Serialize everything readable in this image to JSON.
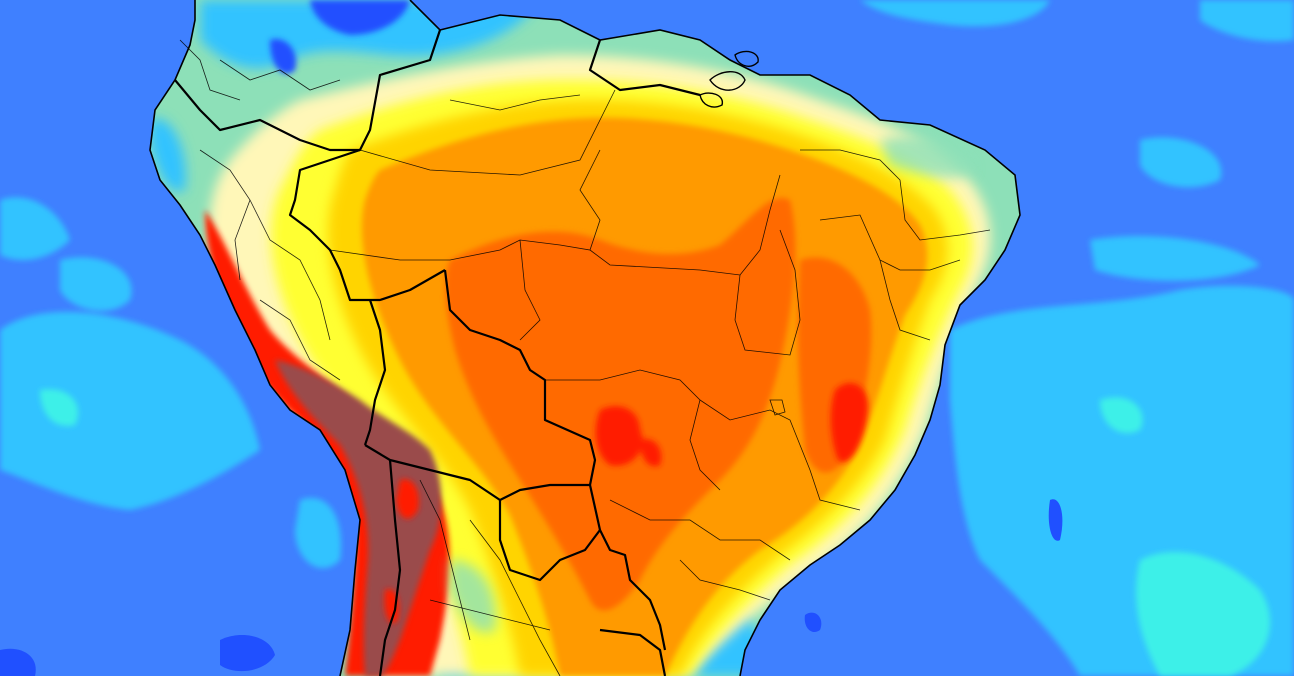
{
  "map": {
    "colors": {
      "ocean": "#3f80ff",
      "ocean_cyan": "#33c3ff",
      "ocean_teal": "#3ef0e8",
      "ocean_dark": "#2050ff",
      "land_green": "#8de0b8",
      "land_pale": "#fff7b8",
      "land_yellow": "#ffff33",
      "land_gold": "#ffd400",
      "land_orange": "#ff9a00",
      "land_deep_orange": "#ff6a00",
      "land_red": "#ff1a00",
      "land_brown": "#9a4b4b",
      "border": "#000000"
    }
  }
}
